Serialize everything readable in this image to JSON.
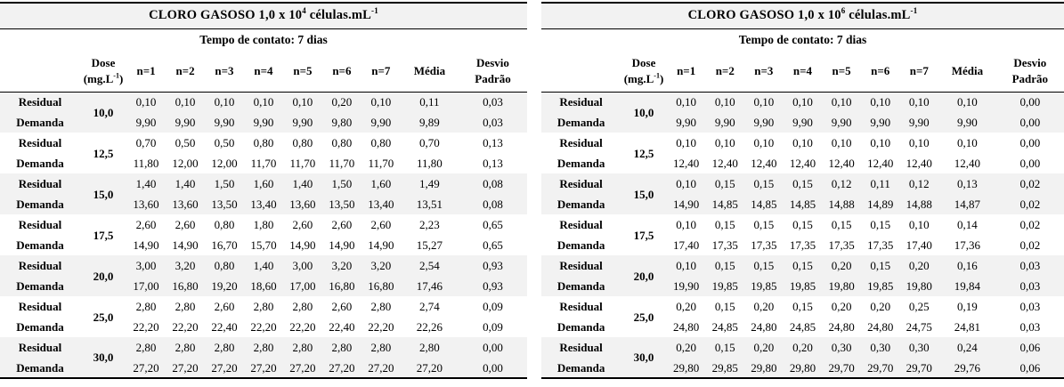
{
  "styles": {
    "band_gray": "#f2f2f2",
    "rule_black": "#000000",
    "page_bg": "#ffffff"
  },
  "tables": [
    {
      "title": {
        "prefix": "CLORO GASOSO 1,0 x 10",
        "exp": "4",
        "middle": " células.mL",
        "exp2": "-1"
      },
      "subtitle": "Tempo de contato: 7 dias",
      "headers": {
        "dose_line1": "Dose",
        "dose_open": "(mg.L",
        "dose_sup": "-1",
        "dose_close": ")",
        "n": [
          "n=1",
          "n=2",
          "n=3",
          "n=4",
          "n=5",
          "n=6",
          "n=7"
        ],
        "media": "Média",
        "desvio_line1": "Desvio",
        "desvio_line2": "Padrão"
      },
      "row_labels": {
        "residual": "Residual",
        "demanda": "Demanda"
      },
      "groups": [
        {
          "dose": "10,0",
          "residual": {
            "values": [
              "0,10",
              "0,10",
              "0,10",
              "0,10",
              "0,10",
              "0,20",
              "0,10"
            ],
            "media": "0,11",
            "desvio": "0,03"
          },
          "demanda": {
            "values": [
              "9,90",
              "9,90",
              "9,90",
              "9,90",
              "9,90",
              "9,80",
              "9,90"
            ],
            "media": "9,89",
            "desvio": "0,03"
          }
        },
        {
          "dose": "12,5",
          "residual": {
            "values": [
              "0,70",
              "0,50",
              "0,50",
              "0,80",
              "0,80",
              "0,80",
              "0,80"
            ],
            "media": "0,70",
            "desvio": "0,13"
          },
          "demanda": {
            "values": [
              "11,80",
              "12,00",
              "12,00",
              "11,70",
              "11,70",
              "11,70",
              "11,70"
            ],
            "media": "11,80",
            "desvio": "0,13"
          }
        },
        {
          "dose": "15,0",
          "residual": {
            "values": [
              "1,40",
              "1,40",
              "1,50",
              "1,60",
              "1,40",
              "1,50",
              "1,60"
            ],
            "media": "1,49",
            "desvio": "0,08"
          },
          "demanda": {
            "values": [
              "13,60",
              "13,60",
              "13,50",
              "13,40",
              "13,60",
              "13,50",
              "13,40"
            ],
            "media": "13,51",
            "desvio": "0,08"
          }
        },
        {
          "dose": "17,5",
          "residual": {
            "values": [
              "2,60",
              "2,60",
              "0,80",
              "1,80",
              "2,60",
              "2,60",
              "2,60"
            ],
            "media": "2,23",
            "desvio": "0,65"
          },
          "demanda": {
            "values": [
              "14,90",
              "14,90",
              "16,70",
              "15,70",
              "14,90",
              "14,90",
              "14,90"
            ],
            "media": "15,27",
            "desvio": "0,65"
          }
        },
        {
          "dose": "20,0",
          "residual": {
            "values": [
              "3,00",
              "3,20",
              "0,80",
              "1,40",
              "3,00",
              "3,20",
              "3,20"
            ],
            "media": "2,54",
            "desvio": "0,93"
          },
          "demanda": {
            "values": [
              "17,00",
              "16,80",
              "19,20",
              "18,60",
              "17,00",
              "16,80",
              "16,80"
            ],
            "media": "17,46",
            "desvio": "0,93"
          }
        },
        {
          "dose": "25,0",
          "residual": {
            "values": [
              "2,80",
              "2,80",
              "2,60",
              "2,80",
              "2,80",
              "2,60",
              "2,80"
            ],
            "media": "2,74",
            "desvio": "0,09"
          },
          "demanda": {
            "values": [
              "22,20",
              "22,20",
              "22,40",
              "22,20",
              "22,20",
              "22,40",
              "22,20"
            ],
            "media": "22,26",
            "desvio": "0,09"
          }
        },
        {
          "dose": "30,0",
          "residual": {
            "values": [
              "2,80",
              "2,80",
              "2,80",
              "2,80",
              "2,80",
              "2,80",
              "2,80"
            ],
            "media": "2,80",
            "desvio": "0,00"
          },
          "demanda": {
            "values": [
              "27,20",
              "27,20",
              "27,20",
              "27,20",
              "27,20",
              "27,20",
              "27,20"
            ],
            "media": "27,20",
            "desvio": "0,00"
          }
        }
      ]
    },
    {
      "title": {
        "prefix": "CLORO GASOSO 1,0 x 10",
        "exp": "6",
        "middle": " células.mL",
        "exp2": "-1"
      },
      "subtitle": "Tempo de contato: 7 dias",
      "headers": {
        "dose_line1": "Dose",
        "dose_open": "(mg.L",
        "dose_sup": "-1",
        "dose_close": ")",
        "n": [
          "n=1",
          "n=2",
          "n=3",
          "n=4",
          "n=5",
          "n=6",
          "n=7"
        ],
        "media": "Média",
        "desvio_line1": "Desvio",
        "desvio_line2": "Padrão"
      },
      "row_labels": {
        "residual": "Residual",
        "demanda": "Demanda"
      },
      "groups": [
        {
          "dose": "10,0",
          "residual": {
            "values": [
              "0,10",
              "0,10",
              "0,10",
              "0,10",
              "0,10",
              "0,10",
              "0,10"
            ],
            "media": "0,10",
            "desvio": "0,00"
          },
          "demanda": {
            "values": [
              "9,90",
              "9,90",
              "9,90",
              "9,90",
              "9,90",
              "9,90",
              "9,90"
            ],
            "media": "9,90",
            "desvio": "0,00"
          }
        },
        {
          "dose": "12,5",
          "residual": {
            "values": [
              "0,10",
              "0,10",
              "0,10",
              "0,10",
              "0,10",
              "0,10",
              "0,10"
            ],
            "media": "0,10",
            "desvio": "0,00"
          },
          "demanda": {
            "values": [
              "12,40",
              "12,40",
              "12,40",
              "12,40",
              "12,40",
              "12,40",
              "12,40"
            ],
            "media": "12,40",
            "desvio": "0,00"
          }
        },
        {
          "dose": "15,0",
          "residual": {
            "values": [
              "0,10",
              "0,15",
              "0,15",
              "0,15",
              "0,12",
              "0,11",
              "0,12"
            ],
            "media": "0,13",
            "desvio": "0,02"
          },
          "demanda": {
            "values": [
              "14,90",
              "14,85",
              "14,85",
              "14,85",
              "14,88",
              "14,89",
              "14,88"
            ],
            "media": "14,87",
            "desvio": "0,02"
          }
        },
        {
          "dose": "17,5",
          "residual": {
            "values": [
              "0,10",
              "0,15",
              "0,15",
              "0,15",
              "0,15",
              "0,15",
              "0,10"
            ],
            "media": "0,14",
            "desvio": "0,02"
          },
          "demanda": {
            "values": [
              "17,40",
              "17,35",
              "17,35",
              "17,35",
              "17,35",
              "17,35",
              "17,40"
            ],
            "media": "17,36",
            "desvio": "0,02"
          }
        },
        {
          "dose": "20,0",
          "residual": {
            "values": [
              "0,10",
              "0,15",
              "0,15",
              "0,15",
              "0,20",
              "0,15",
              "0,20"
            ],
            "media": "0,16",
            "desvio": "0,03"
          },
          "demanda": {
            "values": [
              "19,90",
              "19,85",
              "19,85",
              "19,85",
              "19,80",
              "19,85",
              "19,80"
            ],
            "media": "19,84",
            "desvio": "0,03"
          }
        },
        {
          "dose": "25,0",
          "residual": {
            "values": [
              "0,20",
              "0,15",
              "0,20",
              "0,15",
              "0,20",
              "0,20",
              "0,25"
            ],
            "media": "0,19",
            "desvio": "0,03"
          },
          "demanda": {
            "values": [
              "24,80",
              "24,85",
              "24,80",
              "24,85",
              "24,80",
              "24,80",
              "24,75"
            ],
            "media": "24,81",
            "desvio": "0,03"
          }
        },
        {
          "dose": "30,0",
          "residual": {
            "values": [
              "0,20",
              "0,15",
              "0,20",
              "0,20",
              "0,30",
              "0,30",
              "0,30"
            ],
            "media": "0,24",
            "desvio": "0,06"
          },
          "demanda": {
            "values": [
              "29,80",
              "29,85",
              "29,80",
              "29,80",
              "29,70",
              "29,70",
              "29,70"
            ],
            "media": "29,76",
            "desvio": "0,06"
          }
        }
      ]
    }
  ]
}
